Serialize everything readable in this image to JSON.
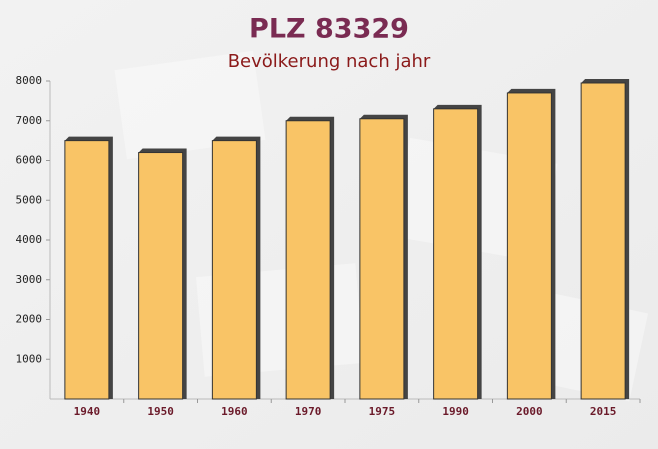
{
  "chart_data": {
    "type": "bar",
    "title": "PLZ 83329",
    "subtitle": "Bevölkerung nach jahr",
    "categories": [
      "1940",
      "1950",
      "1960",
      "1970",
      "1975",
      "1990",
      "2000",
      "2015"
    ],
    "values": [
      6500,
      6200,
      6500,
      7000,
      7050,
      7300,
      7700,
      7950
    ],
    "color": "#f9c466",
    "ylim": [
      0,
      8000
    ],
    "yticks": [
      1000,
      2000,
      3000,
      4000,
      5000,
      6000,
      7000,
      8000
    ],
    "grid": false
  }
}
